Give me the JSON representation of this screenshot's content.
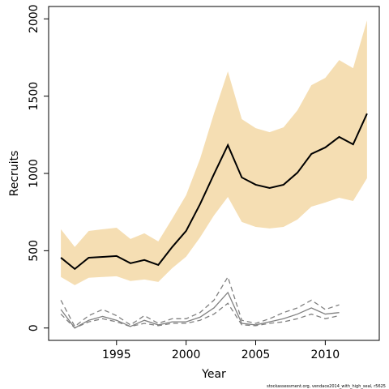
{
  "chart_data": {
    "type": "line",
    "x_label": "Year",
    "y_label": "Recruits",
    "footer": "stockassessment.org, vendace2014_with_high_seal, r5625",
    "x": [
      1991,
      1992,
      1993,
      1994,
      1995,
      1996,
      1997,
      1998,
      1999,
      2000,
      2001,
      2002,
      2003,
      2004,
      2005,
      2006,
      2007,
      2008,
      2009,
      2010,
      2011,
      2012,
      2013
    ],
    "xlim": [
      1990.12,
      2013.88
    ],
    "xticks": [
      1995,
      2000,
      2005,
      2010
    ],
    "ylim": [
      -80,
      2080
    ],
    "yticks": [
      0,
      500,
      1000,
      1500,
      2000
    ],
    "band": {
      "color": "#f5deb3",
      "upper": [
        639,
        524,
        628,
        639,
        649,
        576,
        613,
        560,
        707,
        859,
        1094,
        1387,
        1660,
        1351,
        1293,
        1267,
        1298,
        1408,
        1571,
        1618,
        1733,
        1681,
        1990
      ],
      "lower": [
        330,
        277,
        325,
        330,
        335,
        304,
        314,
        298,
        387,
        461,
        586,
        728,
        848,
        686,
        654,
        644,
        654,
        702,
        785,
        812,
        843,
        822,
        969
      ]
    },
    "series": [
      {
        "color": "#000000",
        "style": "solid",
        "width": 2,
        "values": [
          455,
          382,
          455,
          460,
          466,
          419,
          440,
          408,
          524,
          628,
          801,
          995,
          1183,
          974,
          927,
          906,
          927,
          1005,
          1126,
          1168,
          1236,
          1188,
          1387
        ]
      },
      {
        "color": "#808080",
        "style": "solid",
        "width": 1.3,
        "values": [
          120,
          0,
          50,
          75,
          50,
          10,
          50,
          20,
          40,
          40,
          70,
          130,
          230,
          30,
          20,
          40,
          60,
          90,
          130,
          90,
          100,
          null,
          null
        ]
      },
      {
        "color": "#808080",
        "style": "dashed",
        "width": 1.3,
        "values": [
          180,
          10,
          80,
          120,
          80,
          20,
          80,
          30,
          60,
          60,
          100,
          180,
          330,
          50,
          30,
          60,
          100,
          130,
          180,
          120,
          150,
          null,
          null
        ]
      },
      {
        "color": "#808080",
        "style": "dashed",
        "width": 1.3,
        "values": [
          90,
          0,
          40,
          60,
          40,
          10,
          30,
          15,
          30,
          30,
          50,
          90,
          160,
          20,
          15,
          30,
          40,
          60,
          90,
          60,
          80,
          null,
          null
        ]
      }
    ]
  }
}
